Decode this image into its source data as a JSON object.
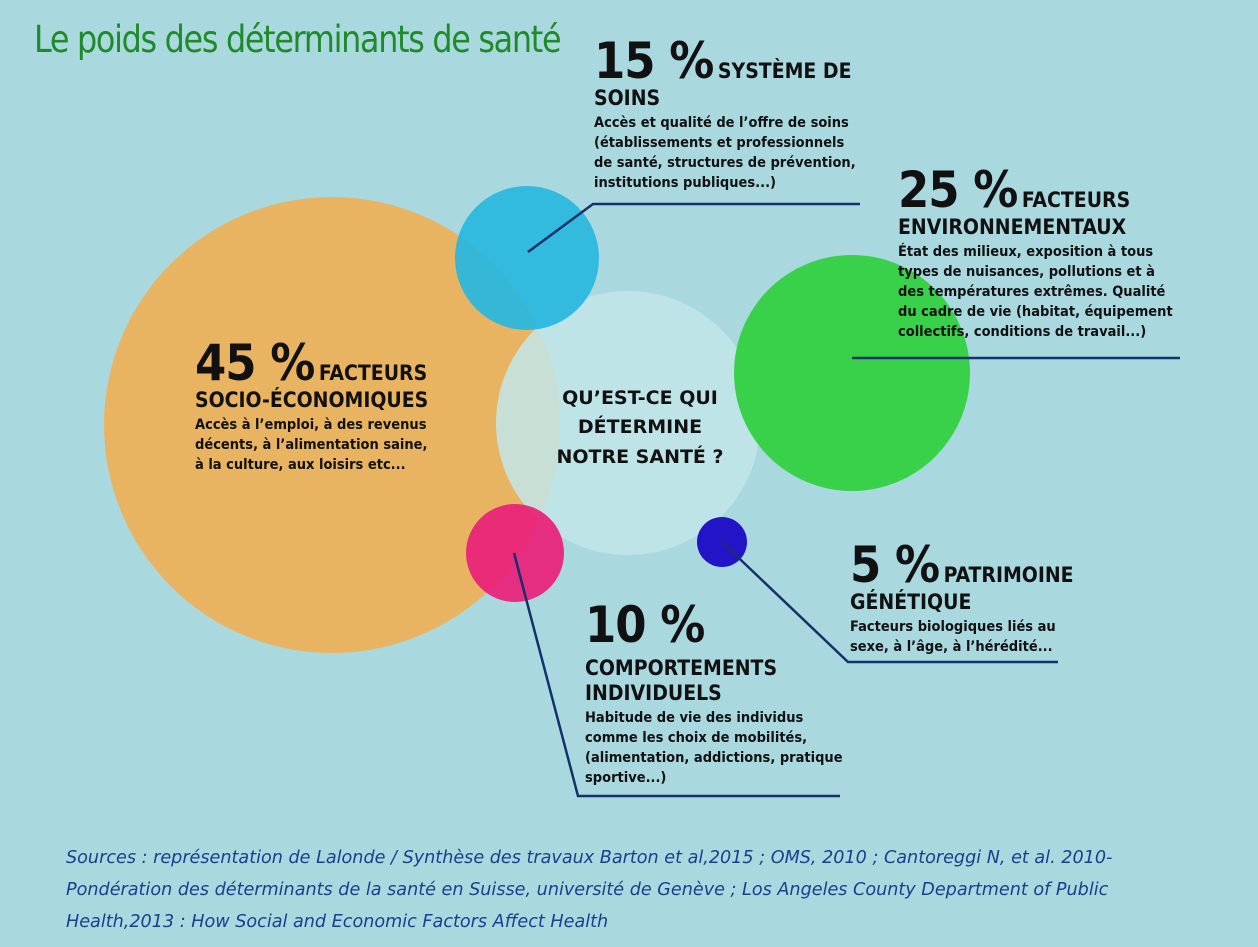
{
  "title": "Le poids des déterminants de santé",
  "center_question": [
    "QU’EST-CE QUI",
    "DÉTERMINE",
    "NOTRE SANTÉ ?"
  ],
  "colors": {
    "background": "#a9d8df",
    "socio": "#e9b462",
    "soins": "#29b7df",
    "env": "#3ad14a",
    "comportements": "#e9207a",
    "genetique": "#2414c8",
    "center": "#c2e6ea",
    "lines": "#16306a",
    "title": "#1f8a2a",
    "sources": "#1a3f8c"
  },
  "determinants": {
    "socio": {
      "percent": "45 %",
      "label_line1": "FACTEURS",
      "label_line2": "SOCIO-ÉCONOMIQUES",
      "desc": [
        "Accès à l’emploi, à des revenus",
        "décents, à l’alimentation saine,",
        "à la culture, aux loisirs etc..."
      ],
      "value": 45
    },
    "soins": {
      "percent": "15 %",
      "label_line1": "SYSTÈME DE",
      "label_line2": "SOINS",
      "desc": [
        "Accès et qualité de l’offre de soins",
        "(établissements et professionnels",
        "de santé, structures de prévention,",
        "institutions publiques...)"
      ],
      "value": 15
    },
    "env": {
      "percent": "25 %",
      "label_line1": "FACTEURS",
      "label_line2": "ENVIRONNEMENTAUX",
      "desc": [
        "État des milieux, exposition à tous",
        "types de nuisances, pollutions et à",
        "des températures extrêmes. Qualité",
        "du cadre de vie (habitat, équipement",
        "collectifs, conditions de travail...)"
      ],
      "value": 25
    },
    "comportements": {
      "percent": "10 %",
      "label_line1": "COMPORTEMENTS",
      "label_line2": "INDIVIDUELS",
      "desc": [
        "Habitude de vie des individus",
        "comme les choix de mobilités,",
        "(alimentation, addictions, pratique",
        "sportive...)"
      ],
      "value": 10
    },
    "genetique": {
      "percent": "5 %",
      "label_line1": "PATRIMOINE",
      "label_line2": "GÉNÉTIQUE",
      "desc": [
        "Facteurs biologiques liés au",
        "sexe, à l’âge, à l’hérédité..."
      ],
      "value": 5
    }
  },
  "sources": [
    "Sources : représentation de Lalonde / Synthèse des travaux Barton et al,2015 ; OMS, 2010 ; Cantoreggi N, et al. 2010-",
    "Pondération des déterminants de la santé en Suisse, université de Genève ; Los Angeles County Department of Public",
    "Health,2013 : How Social and Economic Factors Affect Health"
  ]
}
